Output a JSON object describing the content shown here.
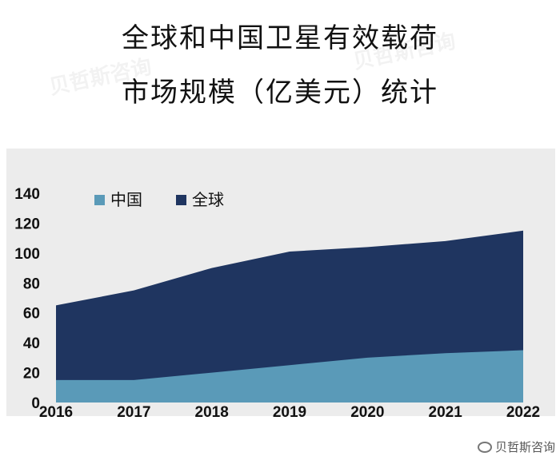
{
  "title": {
    "line1": "全球和中国卫星有效载荷",
    "line2": "市场规模（亿美元）统计"
  },
  "watermark": {
    "text": "贝哲斯咨询",
    "footer_text": "贝哲斯咨询",
    "footer_icon": "weibo-icon"
  },
  "colors": {
    "china": "#5a9ab8",
    "global": "#1f3560",
    "panel": "#ececec"
  },
  "chart_data": {
    "type": "area",
    "stacked": false,
    "x": [
      "2016",
      "2017",
      "2018",
      "2019",
      "2020",
      "2021",
      "2022"
    ],
    "series": [
      {
        "name": "全球",
        "values": [
          65,
          75,
          90,
          101,
          104,
          108,
          115
        ]
      },
      {
        "name": "中国",
        "values": [
          15,
          15,
          20,
          25,
          30,
          33,
          35
        ]
      }
    ],
    "yticks": [
      "0",
      "20",
      "40",
      "60",
      "80",
      "100",
      "120",
      "140"
    ],
    "ylim": [
      0,
      140
    ],
    "legend": [
      "中国",
      "全球"
    ],
    "legend_position": "top-left",
    "grid": false,
    "xlabel": "",
    "ylabel": ""
  }
}
